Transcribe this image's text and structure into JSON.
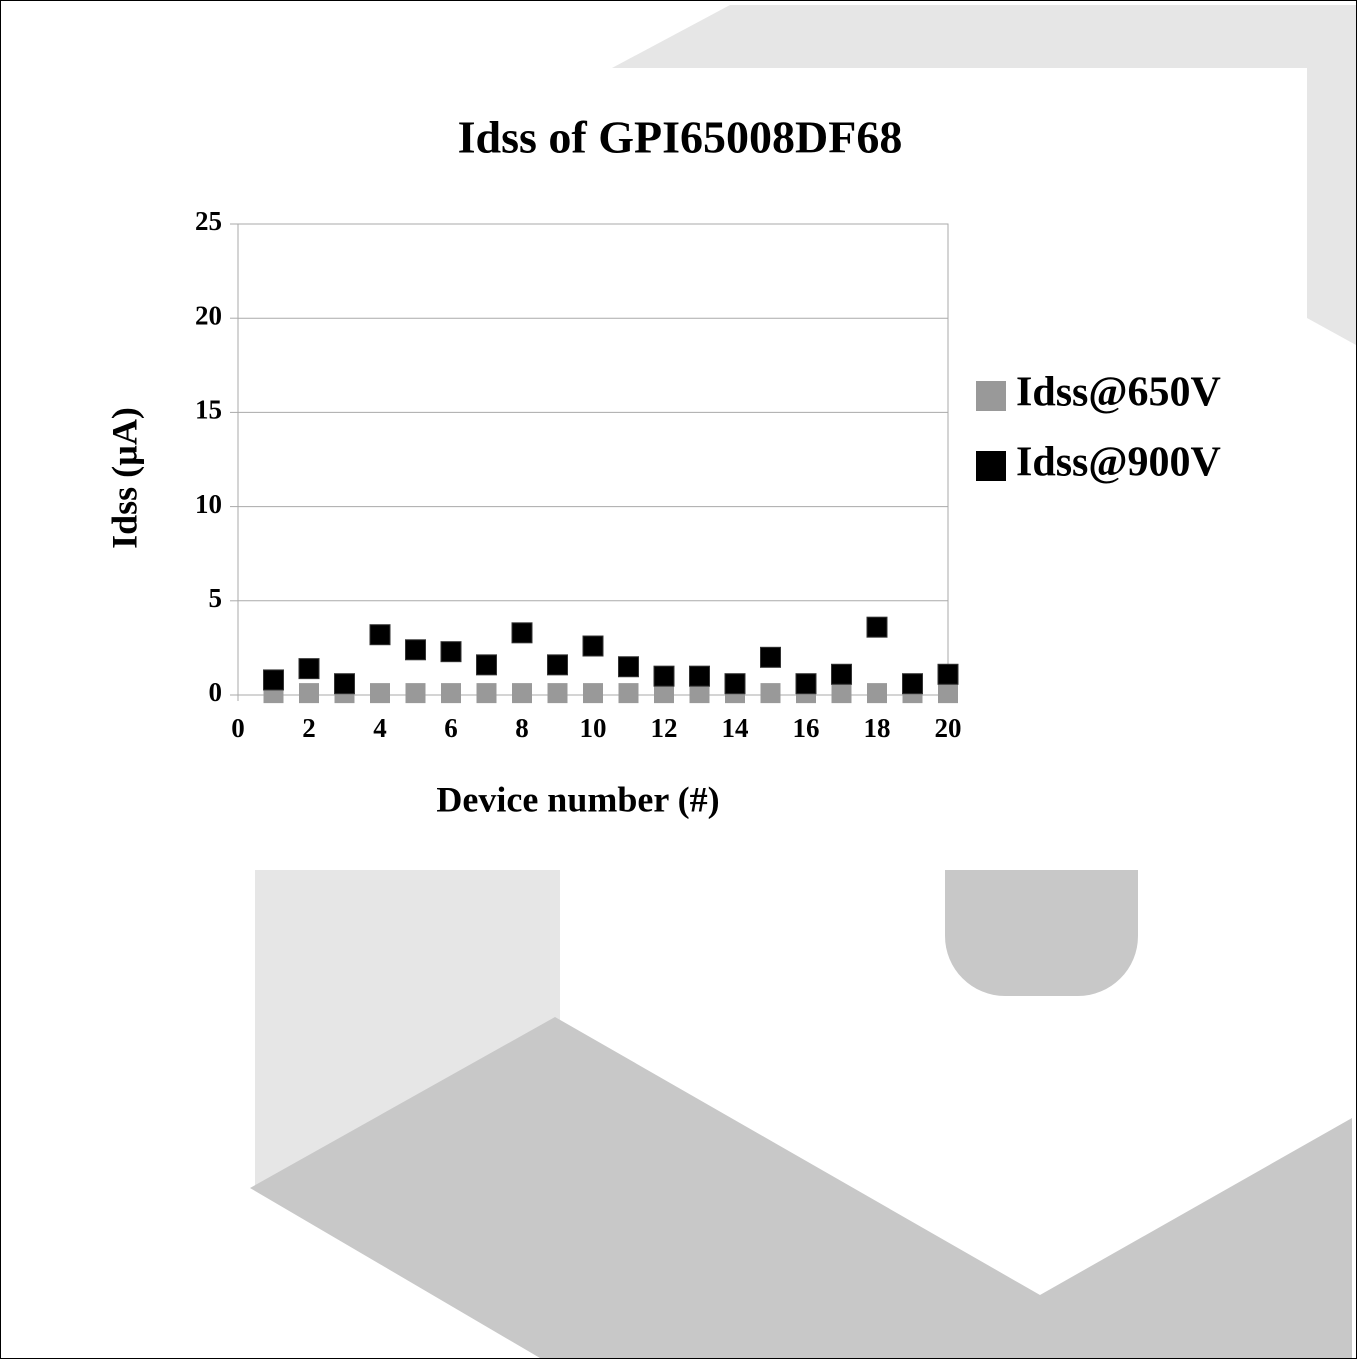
{
  "chart_data": {
    "type": "scatter",
    "title": "Idss of GPI65008DF68",
    "xlabel": "Device number (#)",
    "ylabel": "Idss (µA)",
    "x": [
      1,
      2,
      3,
      4,
      5,
      6,
      7,
      8,
      9,
      10,
      11,
      12,
      13,
      14,
      15,
      16,
      17,
      18,
      19,
      20
    ],
    "series": [
      {
        "name": "Idss@650V",
        "color": "#999999",
        "values": [
          0.1,
          0.1,
          0.1,
          0.1,
          0.1,
          0.1,
          0.1,
          0.1,
          0.1,
          0.1,
          0.1,
          0.1,
          0.1,
          0.1,
          0.1,
          0.1,
          0.1,
          0.1,
          0.1,
          0.1
        ]
      },
      {
        "name": "Idss@900V",
        "color": "#000000",
        "values": [
          0.8,
          1.4,
          0.6,
          3.2,
          2.4,
          2.3,
          1.6,
          3.3,
          1.6,
          2.6,
          1.5,
          1.0,
          1.0,
          0.6,
          2.0,
          0.6,
          1.1,
          3.6,
          0.6,
          1.1
        ]
      }
    ],
    "xlim": [
      0,
      20
    ],
    "xticks": [
      0,
      2,
      4,
      6,
      8,
      10,
      12,
      14,
      16,
      18,
      20
    ],
    "ylim": [
      0,
      25
    ],
    "yticks": [
      0,
      5,
      10,
      15,
      20,
      25
    ],
    "grid": true,
    "legend": "right"
  }
}
